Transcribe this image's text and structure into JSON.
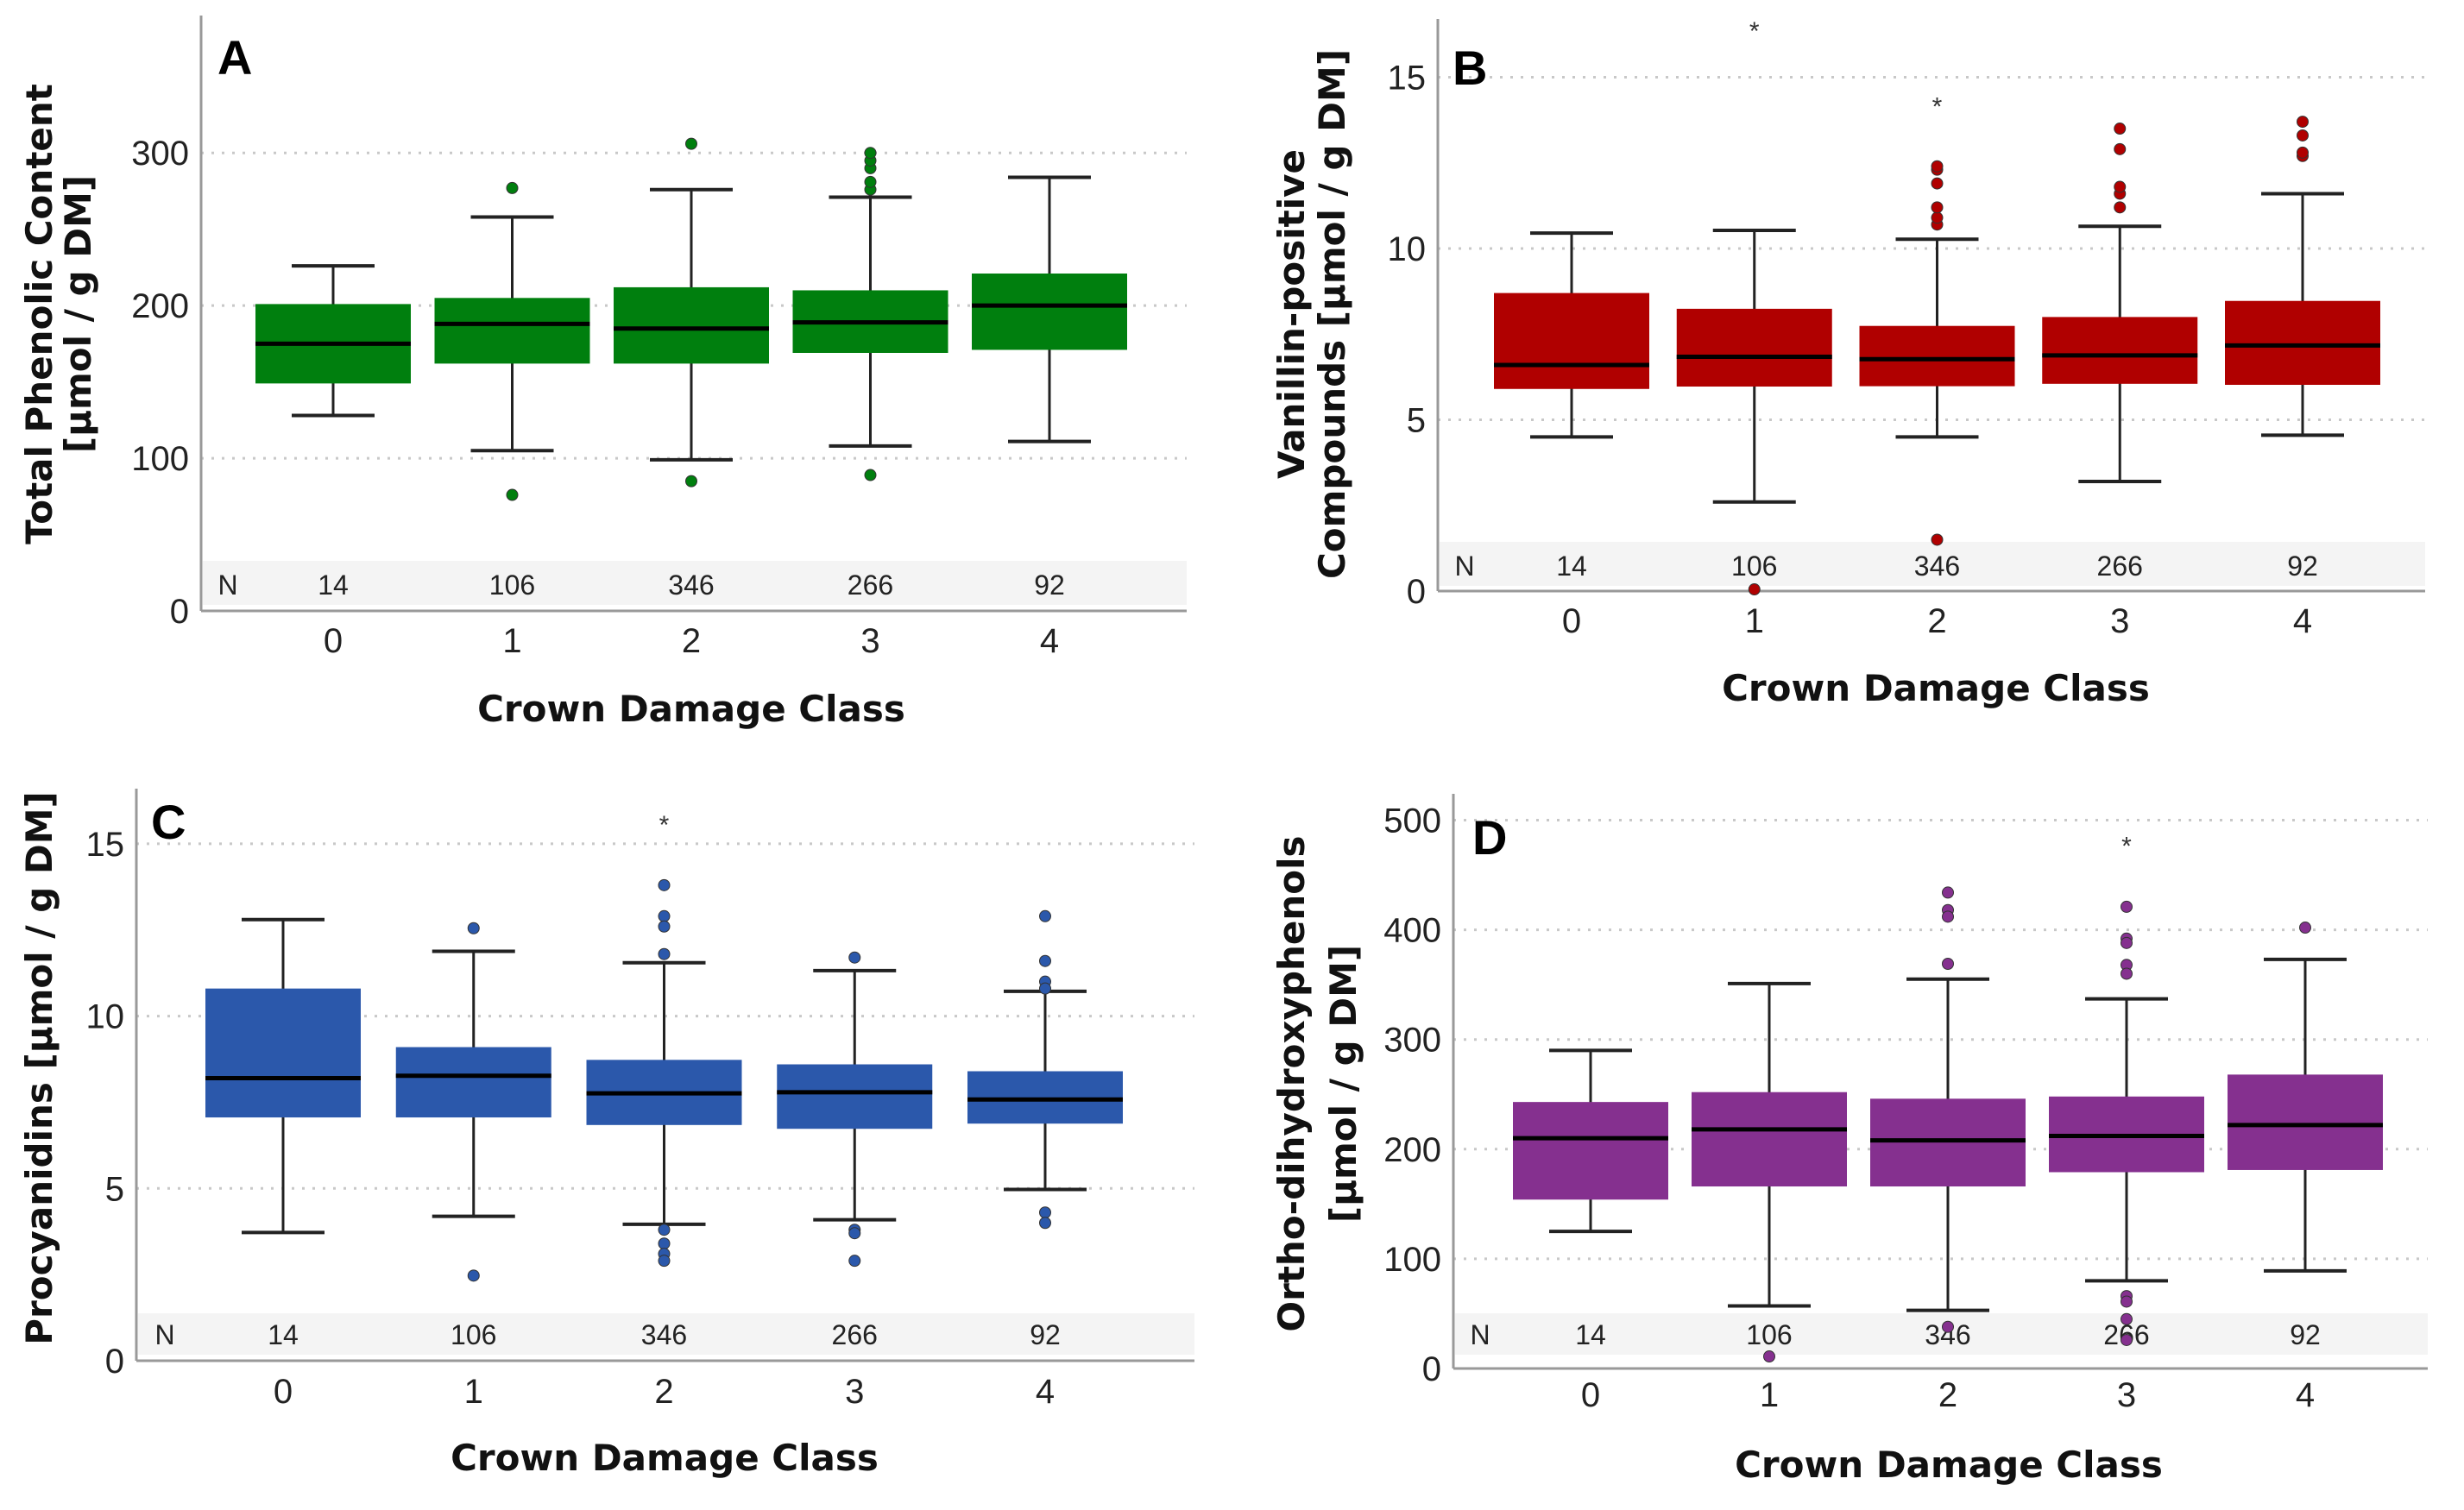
{
  "chart_data": [
    {
      "type": "box",
      "panel": "A",
      "ylabel": [
        "Total Phenolic Content",
        "[µmol / g DM]"
      ],
      "xlabel": "Crown Damage Class",
      "ylim": [
        0,
        390
      ],
      "yticks": [
        0,
        100,
        200,
        300
      ],
      "grid": "horizontal dotted",
      "categories": [
        "0",
        "1",
        "2",
        "3",
        "4"
      ],
      "n_label": "N",
      "n_counts": [
        "14",
        "106",
        "346",
        "266",
        "92"
      ],
      "color": "#007f0e",
      "boxes": [
        {
          "whisker_low": 128,
          "q1": 149,
          "median": 175,
          "q3": 201,
          "whisker_high": 226,
          "outliers": [],
          "extremes": []
        },
        {
          "whisker_low": 105,
          "q1": 162,
          "median": 188,
          "q3": 205,
          "whisker_high": 258,
          "outliers": [
            277,
            76
          ],
          "extremes": []
        },
        {
          "whisker_low": 99,
          "q1": 162,
          "median": 185,
          "q3": 212,
          "whisker_high": 276,
          "outliers": [
            306,
            85
          ],
          "extremes": []
        },
        {
          "whisker_low": 108,
          "q1": 169,
          "median": 189,
          "q3": 210,
          "whisker_high": 271,
          "outliers": [
            276,
            281,
            290,
            295,
            300,
            89
          ],
          "extremes": []
        },
        {
          "whisker_low": 111,
          "q1": 171,
          "median": 200,
          "q3": 221,
          "whisker_high": 284,
          "outliers": [],
          "extremes": []
        }
      ]
    },
    {
      "type": "box",
      "panel": "B",
      "ylabel": [
        "Vanillin-positive",
        "Compounds [µmol / g DM]"
      ],
      "xlabel": "Crown Damage Class",
      "ylim": [
        0,
        16.7
      ],
      "yticks": [
        0,
        5,
        10,
        15
      ],
      "grid": "horizontal dotted",
      "categories": [
        "0",
        "1",
        "2",
        "3",
        "4"
      ],
      "n_label": "N",
      "n_counts": [
        "14",
        "106",
        "346",
        "266",
        "92"
      ],
      "color": "#b00000",
      "boxes": [
        {
          "whisker_low": 4.5,
          "q1": 5.9,
          "median": 6.6,
          "q3": 8.7,
          "whisker_high": 10.45,
          "outliers": [],
          "extremes": []
        },
        {
          "whisker_low": 2.6,
          "q1": 5.97,
          "median": 6.84,
          "q3": 8.24,
          "whisker_high": 10.53,
          "outliers": [
            0.05
          ],
          "extremes": [
            16.4
          ]
        },
        {
          "whisker_low": 4.5,
          "q1": 5.98,
          "median": 6.77,
          "q3": 7.74,
          "whisker_high": 10.27,
          "outliers": [
            10.7,
            10.9,
            11.2,
            11.9,
            12.3,
            12.4,
            1.5
          ],
          "extremes": [
            14.2
          ]
        },
        {
          "whisker_low": 3.2,
          "q1": 6.05,
          "median": 6.88,
          "q3": 8.0,
          "whisker_high": 10.65,
          "outliers": [
            11.2,
            11.6,
            11.8,
            12.9,
            13.5
          ],
          "extremes": []
        },
        {
          "whisker_low": 4.55,
          "q1": 6.02,
          "median": 7.17,
          "q3": 8.47,
          "whisker_high": 11.6,
          "outliers": [
            12.7,
            12.8,
            13.3,
            13.7
          ],
          "extremes": []
        }
      ]
    },
    {
      "type": "box",
      "panel": "C",
      "ylabel": [
        "Procyanidins [µmol / g DM]"
      ],
      "xlabel": "Crown Damage Class",
      "ylim": [
        0,
        16.6
      ],
      "yticks": [
        0,
        5,
        10,
        15
      ],
      "grid": "horizontal dotted",
      "categories": [
        "0",
        "1",
        "2",
        "3",
        "4"
      ],
      "n_label": "N",
      "n_counts": [
        "14",
        "106",
        "346",
        "266",
        "92"
      ],
      "color": "#2b58ab",
      "boxes": [
        {
          "whisker_low": 3.72,
          "q1": 7.06,
          "median": 8.2,
          "q3": 10.8,
          "whisker_high": 12.8,
          "outliers": [],
          "extremes": []
        },
        {
          "whisker_low": 4.19,
          "q1": 7.06,
          "median": 8.27,
          "q3": 9.1,
          "whisker_high": 11.88,
          "outliers": [
            12.55,
            2.47
          ],
          "extremes": []
        },
        {
          "whisker_low": 3.96,
          "q1": 6.84,
          "median": 7.76,
          "q3": 8.73,
          "whisker_high": 11.55,
          "outliers": [
            13.8,
            12.9,
            12.6,
            11.8,
            3.8,
            3.4,
            3.1,
            2.9
          ],
          "extremes": [
            15.6
          ]
        },
        {
          "whisker_low": 4.09,
          "q1": 6.73,
          "median": 7.79,
          "q3": 8.6,
          "whisker_high": 11.32,
          "outliers": [
            11.7,
            3.8,
            3.7,
            2.9
          ],
          "extremes": []
        },
        {
          "whisker_low": 4.97,
          "q1": 6.88,
          "median": 7.58,
          "q3": 8.4,
          "whisker_high": 10.72,
          "outliers": [
            12.9,
            11.6,
            11.0,
            10.8,
            4.3,
            4.0
          ],
          "extremes": []
        }
      ]
    },
    {
      "type": "box",
      "panel": "D",
      "ylabel": [
        "Ortho-dihydroxyphenols",
        "[µmol / g DM]"
      ],
      "xlabel": "Crown Damage Class",
      "ylim": [
        0,
        524
      ],
      "yticks": [
        0,
        100,
        200,
        300,
        400,
        500
      ],
      "grid": "horizontal dotted",
      "categories": [
        "0",
        "1",
        "2",
        "3",
        "4"
      ],
      "n_label": "N",
      "n_counts": [
        "14",
        "106",
        "346",
        "266",
        "92"
      ],
      "color": "#85308f",
      "boxes": [
        {
          "whisker_low": 125,
          "q1": 154,
          "median": 210,
          "q3": 243,
          "whisker_high": 290,
          "outliers": [],
          "extremes": []
        },
        {
          "whisker_low": 57,
          "q1": 166,
          "median": 218,
          "q3": 252,
          "whisker_high": 351,
          "outliers": [
            11
          ],
          "extremes": []
        },
        {
          "whisker_low": 53,
          "q1": 166,
          "median": 208,
          "q3": 246,
          "whisker_high": 355,
          "outliers": [
            434,
            418,
            412,
            369,
            38
          ],
          "extremes": []
        },
        {
          "whisker_low": 80,
          "q1": 179,
          "median": 212,
          "q3": 248,
          "whisker_high": 337,
          "outliers": [
            421,
            392,
            388,
            368,
            360,
            66,
            61,
            45,
            26
          ],
          "extremes": [
            478
          ]
        },
        {
          "whisker_low": 89,
          "q1": 181,
          "median": 222,
          "q3": 268,
          "whisker_high": 373,
          "outliers": [
            402
          ],
          "extremes": []
        }
      ]
    }
  ]
}
